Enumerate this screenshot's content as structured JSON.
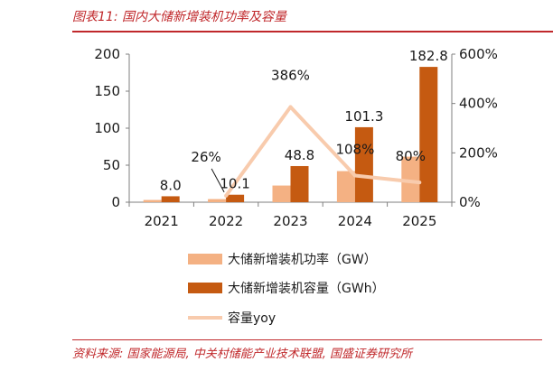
{
  "header": {
    "title": "图表11:  国内大储新增装机功率及容量"
  },
  "footer": {
    "source": "资料来源:  国家能源局, 中关村储能产业技术联盟, 国盛证券研究所"
  },
  "colors": {
    "accent": "#c0282b",
    "power": "#f4b183",
    "capacity": "#c55a11",
    "yoy": "#f8cbad"
  },
  "chart_data": {
    "type": "bar",
    "categories": [
      "2021",
      "2022",
      "2023",
      "2024",
      "2025"
    ],
    "series": [
      {
        "name": "大储新增装机功率（GW）",
        "type": "bar",
        "axis": "left",
        "values": [
          3.0,
          4.2,
          22.5,
          42.0,
          61.5
        ]
      },
      {
        "name": "大储新增装机容量（GWh）",
        "type": "bar",
        "axis": "left",
        "values": [
          8.0,
          10.1,
          48.8,
          101.3,
          182.8
        ],
        "labels": [
          "8.0",
          "10.1",
          "48.8",
          "101.3",
          "182.8"
        ]
      },
      {
        "name": "容量yoy",
        "type": "line",
        "axis": "right",
        "values": [
          null,
          26,
          386,
          108,
          80
        ],
        "labels": [
          "",
          "26%",
          "386%",
          "108%",
          "80%"
        ]
      }
    ],
    "y_left": {
      "min": 0,
      "max": 200,
      "ticks": [
        "0",
        "50",
        "100",
        "150",
        "200"
      ]
    },
    "y_right": {
      "min": 0,
      "max": 600,
      "ticks": [
        "0%",
        "200%",
        "400%",
        "600%"
      ]
    },
    "legend_position": "bottom-center",
    "grid": false
  }
}
